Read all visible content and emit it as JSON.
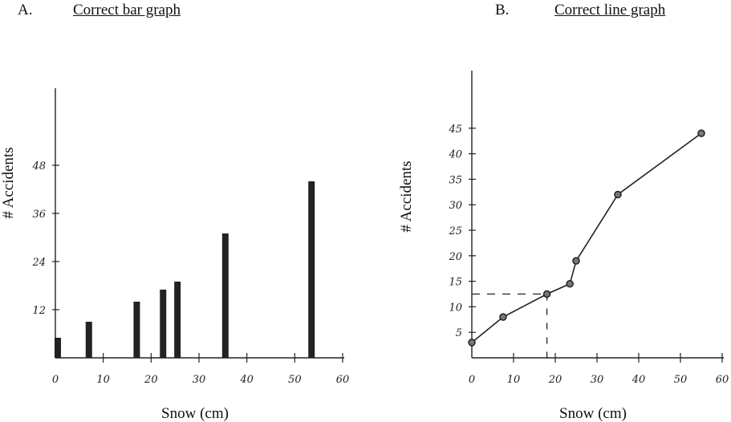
{
  "panel_a": {
    "letter": "A.",
    "title": "Correct bar graph"
  },
  "panel_b": {
    "letter": "B.",
    "title": "Correct line graph"
  },
  "chart_data": [
    {
      "type": "bar",
      "title": "Correct bar graph",
      "xlabel": "Snow (cm)",
      "ylabel": "# Accidents",
      "xlim": [
        0,
        60
      ],
      "ylim": [
        0,
        48
      ],
      "xticks": [
        0,
        10,
        20,
        30,
        40,
        50,
        60
      ],
      "yticks": [
        12,
        24,
        36,
        48
      ],
      "x": [
        0.5,
        7,
        17,
        22.5,
        25.5,
        35.5,
        53.5
      ],
      "values": [
        5,
        9,
        14,
        17,
        19,
        31,
        44
      ],
      "color": "#222222"
    },
    {
      "type": "line",
      "title": "Correct line graph",
      "xlabel": "Snow (cm)",
      "ylabel": "# Accidents",
      "xlim": [
        0,
        60
      ],
      "ylim": [
        0,
        45
      ],
      "xticks": [
        0,
        10,
        20,
        30,
        40,
        50,
        60
      ],
      "yticks": [
        5,
        10,
        15,
        20,
        25,
        30,
        35,
        40,
        45
      ],
      "x": [
        0,
        7.5,
        18,
        23.5,
        25,
        35,
        55
      ],
      "values": [
        3,
        8,
        12.5,
        14.5,
        19,
        32,
        44
      ],
      "annotation": {
        "type": "dashed-guide",
        "x": 18,
        "y": 12.5
      },
      "color": "#222222"
    }
  ]
}
